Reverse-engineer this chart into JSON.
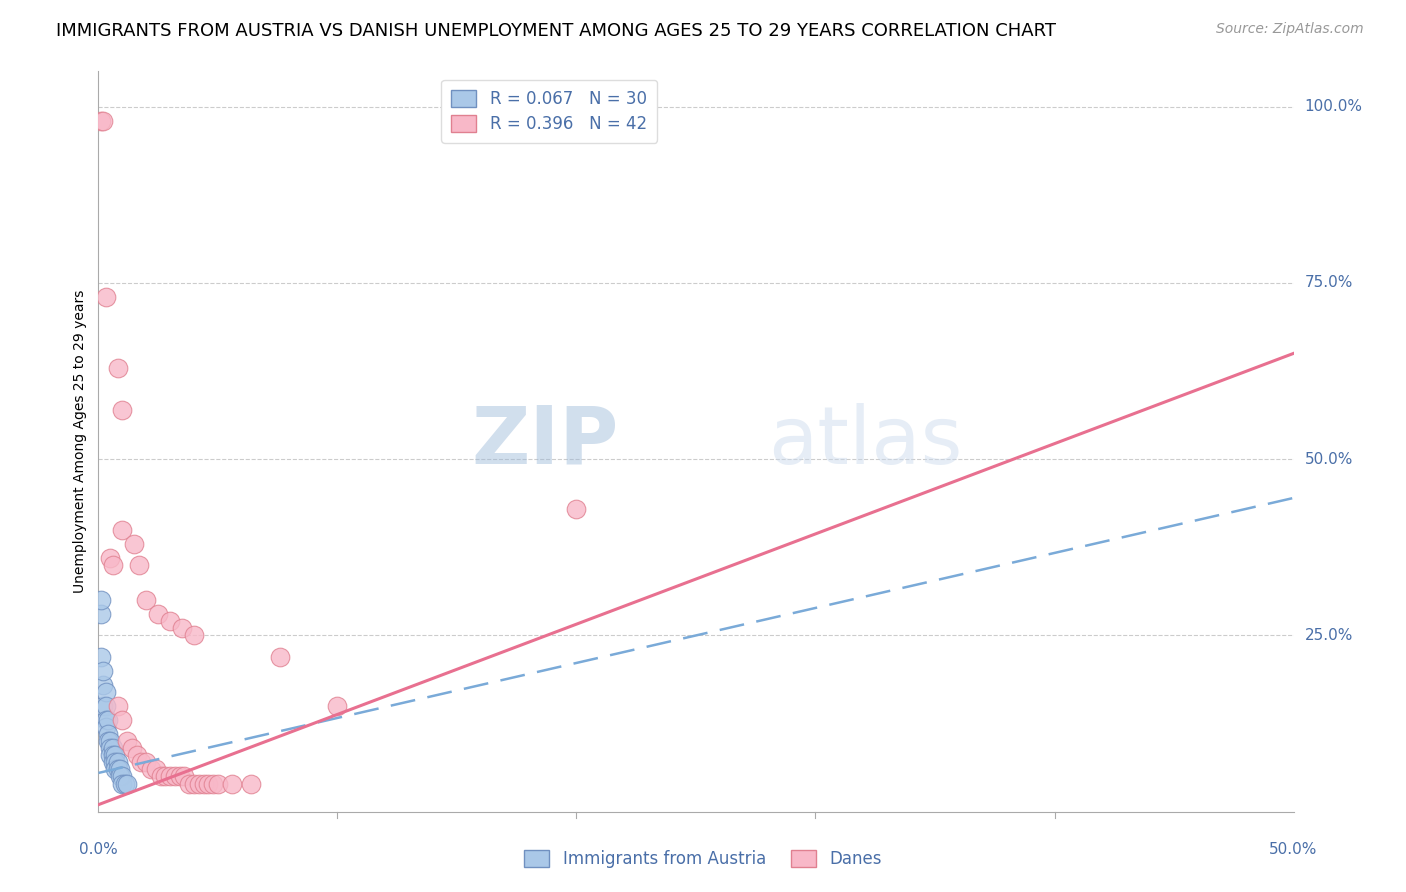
{
  "title": "IMMIGRANTS FROM AUSTRIA VS DANISH UNEMPLOYMENT AMONG AGES 25 TO 29 YEARS CORRELATION CHART",
  "source_text": "Source: ZipAtlas.com",
  "ylabel": "Unemployment Among Ages 25 to 29 years",
  "watermark_zip": "ZIP",
  "watermark_atlas": "atlas",
  "xlim": [
    0.0,
    0.5
  ],
  "ylim": [
    0.0,
    1.05
  ],
  "yticks": [
    0.25,
    0.5,
    0.75,
    1.0
  ],
  "ytick_labels": [
    "25.0%",
    "50.0%",
    "75.0%",
    "100.0%"
  ],
  "grid_color": "#cccccc",
  "blue_color": "#aac8e8",
  "pink_color": "#f8b8c8",
  "blue_edge": "#7090c0",
  "pink_edge": "#e08090",
  "blue_line_color": "#7aaad8",
  "pink_line_color": "#e87090",
  "title_fontsize": 13,
  "axis_label_fontsize": 10,
  "tick_fontsize": 11,
  "legend_fontsize": 12,
  "watermark_color": "#c8d8ec",
  "source_fontsize": 10,
  "blue_r": "R = 0.067",
  "blue_n": "N = 30",
  "pink_r": "R = 0.396",
  "pink_n": "N = 42",
  "blue_label": "Immigrants from Austria",
  "pink_label": "Danes",
  "blue_line_intercept": 0.055,
  "blue_line_slope": 0.78,
  "pink_line_intercept": 0.01,
  "pink_line_slope": 1.28,
  "blue_scatter": [
    [
      0.001,
      0.28
    ],
    [
      0.001,
      0.3
    ],
    [
      0.001,
      0.22
    ],
    [
      0.002,
      0.18
    ],
    [
      0.002,
      0.2
    ],
    [
      0.002,
      0.15
    ],
    [
      0.003,
      0.17
    ],
    [
      0.003,
      0.15
    ],
    [
      0.003,
      0.13
    ],
    [
      0.003,
      0.12
    ],
    [
      0.004,
      0.13
    ],
    [
      0.004,
      0.11
    ],
    [
      0.004,
      0.1
    ],
    [
      0.005,
      0.1
    ],
    [
      0.005,
      0.09
    ],
    [
      0.005,
      0.08
    ],
    [
      0.006,
      0.09
    ],
    [
      0.006,
      0.08
    ],
    [
      0.006,
      0.07
    ],
    [
      0.007,
      0.08
    ],
    [
      0.007,
      0.07
    ],
    [
      0.007,
      0.06
    ],
    [
      0.008,
      0.07
    ],
    [
      0.008,
      0.06
    ],
    [
      0.009,
      0.06
    ],
    [
      0.009,
      0.05
    ],
    [
      0.01,
      0.05
    ],
    [
      0.01,
      0.04
    ],
    [
      0.011,
      0.04
    ],
    [
      0.012,
      0.04
    ]
  ],
  "pink_scatter": [
    [
      0.001,
      0.98
    ],
    [
      0.002,
      0.98
    ],
    [
      0.003,
      0.73
    ],
    [
      0.008,
      0.63
    ],
    [
      0.01,
      0.57
    ],
    [
      0.01,
      0.4
    ],
    [
      0.005,
      0.36
    ],
    [
      0.006,
      0.35
    ],
    [
      0.015,
      0.38
    ],
    [
      0.017,
      0.35
    ],
    [
      0.02,
      0.3
    ],
    [
      0.025,
      0.28
    ],
    [
      0.03,
      0.27
    ],
    [
      0.035,
      0.26
    ],
    [
      0.04,
      0.25
    ],
    [
      0.008,
      0.15
    ],
    [
      0.01,
      0.13
    ],
    [
      0.012,
      0.1
    ],
    [
      0.014,
      0.09
    ],
    [
      0.016,
      0.08
    ],
    [
      0.018,
      0.07
    ],
    [
      0.02,
      0.07
    ],
    [
      0.022,
      0.06
    ],
    [
      0.024,
      0.06
    ],
    [
      0.026,
      0.05
    ],
    [
      0.028,
      0.05
    ],
    [
      0.03,
      0.05
    ],
    [
      0.032,
      0.05
    ],
    [
      0.034,
      0.05
    ],
    [
      0.036,
      0.05
    ],
    [
      0.038,
      0.04
    ],
    [
      0.04,
      0.04
    ],
    [
      0.042,
      0.04
    ],
    [
      0.044,
      0.04
    ],
    [
      0.046,
      0.04
    ],
    [
      0.048,
      0.04
    ],
    [
      0.05,
      0.04
    ],
    [
      0.056,
      0.04
    ],
    [
      0.064,
      0.04
    ],
    [
      0.076,
      0.22
    ],
    [
      0.1,
      0.15
    ],
    [
      0.2,
      0.43
    ]
  ]
}
